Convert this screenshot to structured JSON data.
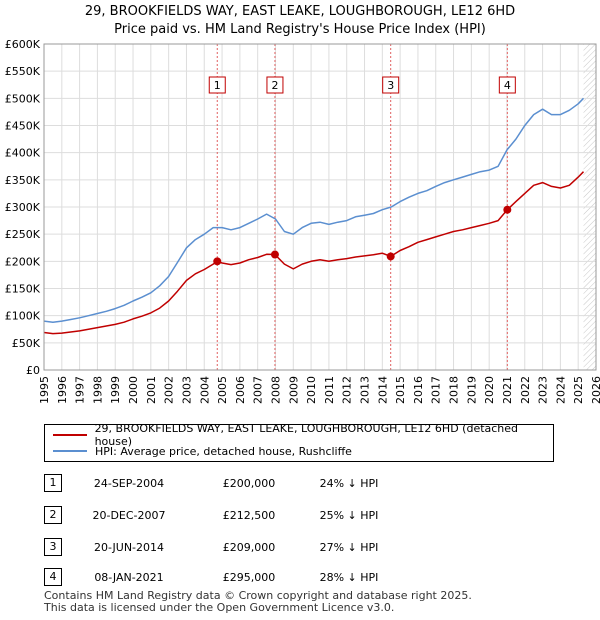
{
  "title": {
    "line1": "29, BROOKFIELDS WAY, EAST LEAKE, LOUGHBOROUGH, LE12 6HD",
    "line2": "Price paid vs. HM Land Registry's House Price Index (HPI)"
  },
  "chart_data": {
    "type": "line",
    "title": "Price paid vs. HM Land Registry's House Price Index (HPI)",
    "xlabel": "",
    "ylabel": "",
    "xlim": [
      1995,
      2026
    ],
    "ylim": [
      0,
      600000
    ],
    "grid": true,
    "x_ticks": [
      "1995",
      "1996",
      "1997",
      "1998",
      "1999",
      "2000",
      "2001",
      "2002",
      "2003",
      "2004",
      "2005",
      "2006",
      "2007",
      "2008",
      "2009",
      "2010",
      "2011",
      "2012",
      "2013",
      "2014",
      "2015",
      "2016",
      "2017",
      "2018",
      "2019",
      "2020",
      "2021",
      "2022",
      "2023",
      "2024",
      "2025",
      "2026"
    ],
    "y_ticks": [
      {
        "value": 0,
        "label": "£0"
      },
      {
        "value": 50000,
        "label": "£50K"
      },
      {
        "value": 100000,
        "label": "£100K"
      },
      {
        "value": 150000,
        "label": "£150K"
      },
      {
        "value": 200000,
        "label": "£200K"
      },
      {
        "value": 250000,
        "label": "£250K"
      },
      {
        "value": 300000,
        "label": "£300K"
      },
      {
        "value": 350000,
        "label": "£350K"
      },
      {
        "value": 400000,
        "label": "£400K"
      },
      {
        "value": 450000,
        "label": "£450K"
      },
      {
        "value": 500000,
        "label": "£500K"
      },
      {
        "value": 550000,
        "label": "£550K"
      },
      {
        "value": 600000,
        "label": "£600K"
      }
    ],
    "forecast_start": 2025.3,
    "series": [
      {
        "name": "HPI: Average price, detached house, Rushcliffe",
        "color": "#5b8fd0",
        "x": [
          1995.0,
          1995.5,
          1996.0,
          1996.5,
          1997.0,
          1997.5,
          1998.0,
          1998.5,
          1999.0,
          1999.5,
          2000.0,
          2000.5,
          2001.0,
          2001.5,
          2002.0,
          2002.5,
          2003.0,
          2003.5,
          2004.0,
          2004.5,
          2005.0,
          2005.5,
          2006.0,
          2006.5,
          2007.0,
          2007.5,
          2008.0,
          2008.5,
          2009.0,
          2009.5,
          2010.0,
          2010.5,
          2011.0,
          2011.5,
          2012.0,
          2012.5,
          2013.0,
          2013.5,
          2014.0,
          2014.5,
          2015.0,
          2015.5,
          2016.0,
          2016.5,
          2017.0,
          2017.5,
          2018.0,
          2018.5,
          2019.0,
          2019.5,
          2020.0,
          2020.5,
          2021.0,
          2021.5,
          2022.0,
          2022.5,
          2023.0,
          2023.5,
          2024.0,
          2024.5,
          2025.0,
          2025.3
        ],
        "values": [
          90000,
          88000,
          90000,
          93000,
          96000,
          100000,
          104000,
          108000,
          113000,
          119000,
          127000,
          134000,
          142000,
          155000,
          172000,
          198000,
          225000,
          240000,
          250000,
          262000,
          262000,
          258000,
          262000,
          270000,
          278000,
          287000,
          278000,
          255000,
          250000,
          262000,
          270000,
          272000,
          268000,
          272000,
          275000,
          282000,
          285000,
          288000,
          295000,
          300000,
          310000,
          318000,
          325000,
          330000,
          338000,
          345000,
          350000,
          355000,
          360000,
          365000,
          368000,
          375000,
          405000,
          425000,
          450000,
          470000,
          480000,
          470000,
          470000,
          478000,
          490000,
          500000
        ]
      },
      {
        "name": "29, BROOKFIELDS WAY, EAST LEAKE, LOUGHBOROUGH, LE12 6HD (detached house)",
        "color": "#c00000",
        "x": [
          1995.0,
          1995.5,
          1996.0,
          1996.5,
          1997.0,
          1997.5,
          1998.0,
          1998.5,
          1999.0,
          1999.5,
          2000.0,
          2000.5,
          2001.0,
          2001.5,
          2002.0,
          2002.5,
          2003.0,
          2003.5,
          2004.0,
          2004.5,
          2004.73,
          2005.0,
          2005.5,
          2006.0,
          2006.5,
          2007.0,
          2007.5,
          2007.97,
          2008.5,
          2009.0,
          2009.5,
          2010.0,
          2010.5,
          2011.0,
          2011.5,
          2012.0,
          2012.5,
          2013.0,
          2013.5,
          2014.0,
          2014.47,
          2015.0,
          2015.5,
          2016.0,
          2016.5,
          2017.0,
          2017.5,
          2018.0,
          2018.5,
          2019.0,
          2019.5,
          2020.0,
          2020.5,
          2021.02,
          2021.5,
          2022.0,
          2022.5,
          2023.0,
          2023.5,
          2024.0,
          2024.5,
          2025.0,
          2025.3
        ],
        "values": [
          69000,
          67000,
          68000,
          70000,
          72000,
          75000,
          78000,
          81000,
          84000,
          88000,
          94000,
          99000,
          105000,
          114000,
          127000,
          145000,
          165000,
          177000,
          185000,
          195000,
          200000,
          197000,
          194000,
          197000,
          203000,
          207000,
          213000,
          212500,
          195000,
          186000,
          195000,
          200000,
          203000,
          200000,
          203000,
          205000,
          208000,
          210000,
          212000,
          215000,
          209000,
          220000,
          227000,
          235000,
          240000,
          245000,
          250000,
          255000,
          258000,
          262000,
          266000,
          270000,
          275000,
          295000,
          310000,
          325000,
          340000,
          345000,
          338000,
          335000,
          340000,
          355000,
          365000
        ]
      }
    ],
    "sales": [
      {
        "label": "1",
        "x": 2004.73,
        "value": 200000
      },
      {
        "label": "2",
        "x": 2007.97,
        "value": 212500
      },
      {
        "label": "3",
        "x": 2014.47,
        "value": 209000
      },
      {
        "label": "4",
        "x": 2021.02,
        "value": 295000
      }
    ]
  },
  "legend": {
    "property_label": "29, BROOKFIELDS WAY, EAST LEAKE, LOUGHBOROUGH, LE12 6HD (detached house)",
    "property_color": "#c00000",
    "hpi_label": "HPI: Average price, detached house, Rushcliffe",
    "hpi_color": "#5b8fd0"
  },
  "sales_table": [
    {
      "num": "1",
      "date": "24-SEP-2004",
      "price": "£200,000",
      "hpi": "24% ↓ HPI"
    },
    {
      "num": "2",
      "date": "20-DEC-2007",
      "price": "£212,500",
      "hpi": "25% ↓ HPI"
    },
    {
      "num": "3",
      "date": "20-JUN-2014",
      "price": "£209,000",
      "hpi": "27% ↓ HPI"
    },
    {
      "num": "4",
      "date": "08-JAN-2021",
      "price": "£295,000",
      "hpi": "28% ↓ HPI"
    }
  ],
  "footer": {
    "line1": "Contains HM Land Registry data © Crown copyright and database right 2025.",
    "line2": "This data is licensed under the Open Government Licence v3.0."
  }
}
